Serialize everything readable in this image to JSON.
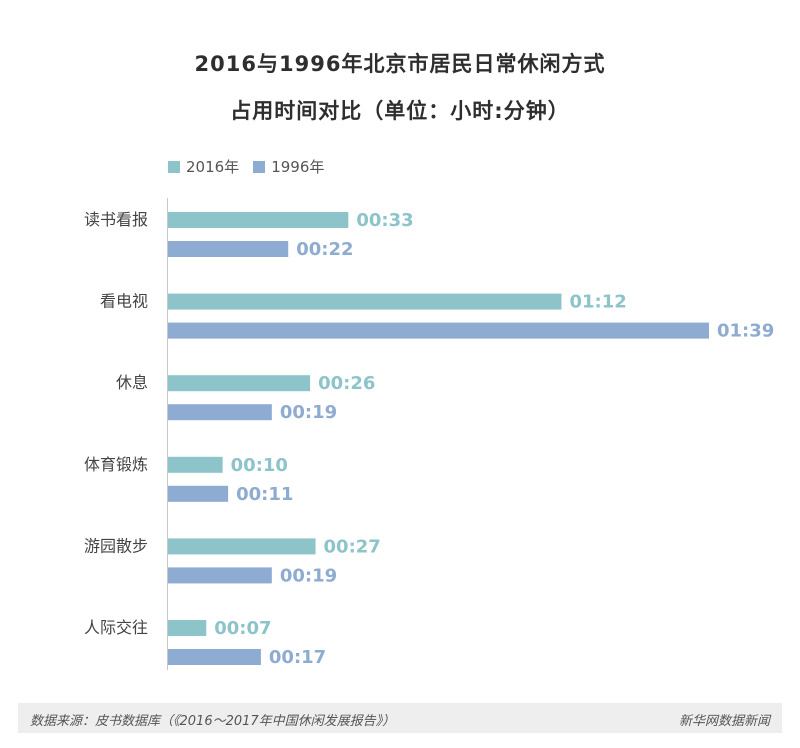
{
  "colors": {
    "series_2016": "#8cc4ca",
    "series_1996": "#8eabd1",
    "axis": "#c8c8c8",
    "title": "#2e2e2e",
    "category_label": "#444444"
  },
  "chart_data": {
    "type": "bar",
    "orientation": "horizontal",
    "title": "2016与1996年北京市居民日常休闲方式",
    "subtitle": "占用时间对比（单位：小时:分钟）",
    "legend_position": "top-left",
    "grid": false,
    "categories": [
      "读书看报",
      "看电视",
      "休息",
      "体育锻炼",
      "游园散步",
      "人际交往"
    ],
    "series": [
      {
        "name": "2016年",
        "values": [
          33,
          72,
          26,
          10,
          27,
          7
        ],
        "labels": [
          "00:33",
          "01:12",
          "00:26",
          "00:10",
          "00:27",
          "00:07"
        ]
      },
      {
        "name": "1996年",
        "values": [
          22,
          99,
          19,
          11,
          19,
          17
        ],
        "labels": [
          "00:22",
          "01:39",
          "00:19",
          "00:11",
          "00:19",
          "00:17"
        ]
      }
    ],
    "value_unit": "minutes",
    "xlim": [
      0,
      99
    ]
  },
  "footer": {
    "source": "数据来源：皮书数据库（《2016～2017年中国休闲发展报告》）",
    "brand": "新华网数据新闻"
  }
}
